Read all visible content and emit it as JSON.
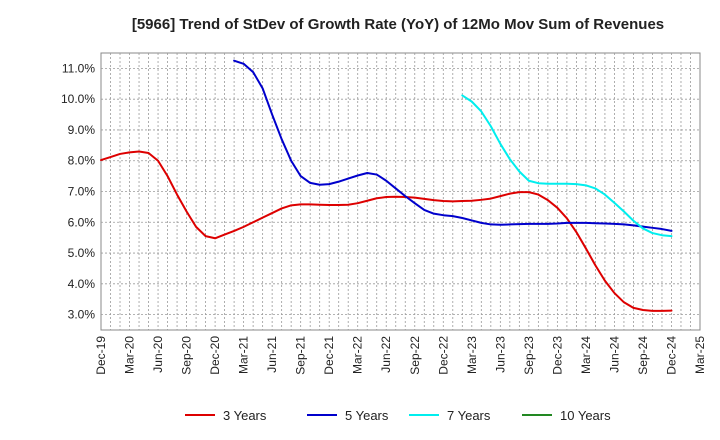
{
  "chart_data": {
    "type": "line",
    "title": "[5966]  Trend of StDev of Growth Rate (YoY) of 12Mo Mov Sum of Revenues",
    "xlabel": "",
    "ylabel": "",
    "x_ticks": [
      "Dec-19",
      "Mar-20",
      "Jun-20",
      "Sep-20",
      "Dec-20",
      "Mar-21",
      "Jun-21",
      "Sep-21",
      "Dec-21",
      "Mar-22",
      "Jun-22",
      "Sep-22",
      "Dec-22",
      "Mar-23",
      "Jun-23",
      "Sep-23",
      "Dec-23",
      "Mar-24",
      "Jun-24",
      "Sep-24",
      "Dec-24",
      "Mar-25"
    ],
    "y_ticks": [
      "3.0%",
      "4.0%",
      "5.0%",
      "6.0%",
      "7.0%",
      "8.0%",
      "9.0%",
      "10.0%",
      "11.0%"
    ],
    "y_tick_values": [
      3,
      4,
      5,
      6,
      7,
      8,
      9,
      10,
      11
    ],
    "ylim": [
      2.5,
      11.5
    ],
    "x_range_months": [
      0,
      63
    ],
    "grid": true,
    "legend_position": "bottom",
    "series": [
      {
        "name": "3 Years",
        "color": "#dd0000",
        "points": [
          [
            0,
            8.02
          ],
          [
            1,
            8.12
          ],
          [
            2,
            8.22
          ],
          [
            3,
            8.27
          ],
          [
            4,
            8.3
          ],
          [
            5,
            8.25
          ],
          [
            6,
            8.0
          ],
          [
            7,
            7.5
          ],
          [
            8,
            6.9
          ],
          [
            9,
            6.35
          ],
          [
            10,
            5.85
          ],
          [
            11,
            5.55
          ],
          [
            12,
            5.48
          ],
          [
            13,
            5.6
          ],
          [
            14,
            5.72
          ],
          [
            15,
            5.85
          ],
          [
            16,
            6.0
          ],
          [
            17,
            6.15
          ],
          [
            18,
            6.3
          ],
          [
            19,
            6.45
          ],
          [
            20,
            6.55
          ],
          [
            21,
            6.58
          ],
          [
            22,
            6.58
          ],
          [
            23,
            6.57
          ],
          [
            24,
            6.56
          ],
          [
            25,
            6.56
          ],
          [
            26,
            6.57
          ],
          [
            27,
            6.62
          ],
          [
            28,
            6.7
          ],
          [
            29,
            6.78
          ],
          [
            30,
            6.82
          ],
          [
            31,
            6.83
          ],
          [
            32,
            6.82
          ],
          [
            33,
            6.8
          ],
          [
            34,
            6.76
          ],
          [
            35,
            6.72
          ],
          [
            36,
            6.69
          ],
          [
            37,
            6.68
          ],
          [
            38,
            6.69
          ],
          [
            39,
            6.7
          ],
          [
            40,
            6.73
          ],
          [
            41,
            6.77
          ],
          [
            42,
            6.85
          ],
          [
            43,
            6.93
          ],
          [
            44,
            6.98
          ],
          [
            45,
            6.98
          ],
          [
            46,
            6.9
          ],
          [
            47,
            6.72
          ],
          [
            48,
            6.47
          ],
          [
            49,
            6.13
          ],
          [
            50,
            5.68
          ],
          [
            51,
            5.15
          ],
          [
            52,
            4.6
          ],
          [
            53,
            4.1
          ],
          [
            54,
            3.7
          ],
          [
            55,
            3.4
          ],
          [
            56,
            3.22
          ],
          [
            57,
            3.15
          ],
          [
            58,
            3.12
          ],
          [
            59,
            3.12
          ],
          [
            60,
            3.13
          ]
        ]
      },
      {
        "name": "5 Years",
        "color": "#0000cc",
        "points": [
          [
            14,
            11.25
          ],
          [
            15,
            11.15
          ],
          [
            16,
            10.88
          ],
          [
            17,
            10.35
          ],
          [
            18,
            9.5
          ],
          [
            19,
            8.7
          ],
          [
            20,
            8.0
          ],
          [
            21,
            7.5
          ],
          [
            22,
            7.28
          ],
          [
            23,
            7.22
          ],
          [
            24,
            7.24
          ],
          [
            25,
            7.32
          ],
          [
            26,
            7.42
          ],
          [
            27,
            7.52
          ],
          [
            28,
            7.6
          ],
          [
            29,
            7.55
          ],
          [
            30,
            7.35
          ],
          [
            31,
            7.1
          ],
          [
            32,
            6.85
          ],
          [
            33,
            6.62
          ],
          [
            34,
            6.4
          ],
          [
            35,
            6.28
          ],
          [
            36,
            6.23
          ],
          [
            37,
            6.2
          ],
          [
            38,
            6.14
          ],
          [
            39,
            6.06
          ],
          [
            40,
            5.98
          ],
          [
            41,
            5.93
          ],
          [
            42,
            5.92
          ],
          [
            43,
            5.93
          ],
          [
            44,
            5.94
          ],
          [
            45,
            5.95
          ],
          [
            46,
            5.95
          ],
          [
            47,
            5.95
          ],
          [
            48,
            5.96
          ],
          [
            49,
            5.98
          ],
          [
            50,
            5.98
          ],
          [
            51,
            5.98
          ],
          [
            52,
            5.97
          ],
          [
            53,
            5.96
          ],
          [
            54,
            5.95
          ],
          [
            55,
            5.93
          ],
          [
            56,
            5.9
          ],
          [
            57,
            5.86
          ],
          [
            58,
            5.82
          ],
          [
            59,
            5.78
          ],
          [
            60,
            5.72
          ]
        ]
      },
      {
        "name": "7 Years",
        "color": "#00eeee",
        "points": [
          [
            38,
            10.12
          ],
          [
            39,
            9.92
          ],
          [
            40,
            9.6
          ],
          [
            41,
            9.12
          ],
          [
            42,
            8.55
          ],
          [
            43,
            8.05
          ],
          [
            44,
            7.65
          ],
          [
            45,
            7.35
          ],
          [
            46,
            7.27
          ],
          [
            47,
            7.25
          ],
          [
            48,
            7.25
          ],
          [
            49,
            7.25
          ],
          [
            50,
            7.24
          ],
          [
            51,
            7.2
          ],
          [
            52,
            7.1
          ],
          [
            53,
            6.9
          ],
          [
            54,
            6.63
          ],
          [
            55,
            6.35
          ],
          [
            56,
            6.05
          ],
          [
            57,
            5.8
          ],
          [
            58,
            5.65
          ],
          [
            59,
            5.58
          ],
          [
            60,
            5.55
          ]
        ]
      },
      {
        "name": "10 Years",
        "color": "#228822",
        "points": []
      }
    ]
  }
}
